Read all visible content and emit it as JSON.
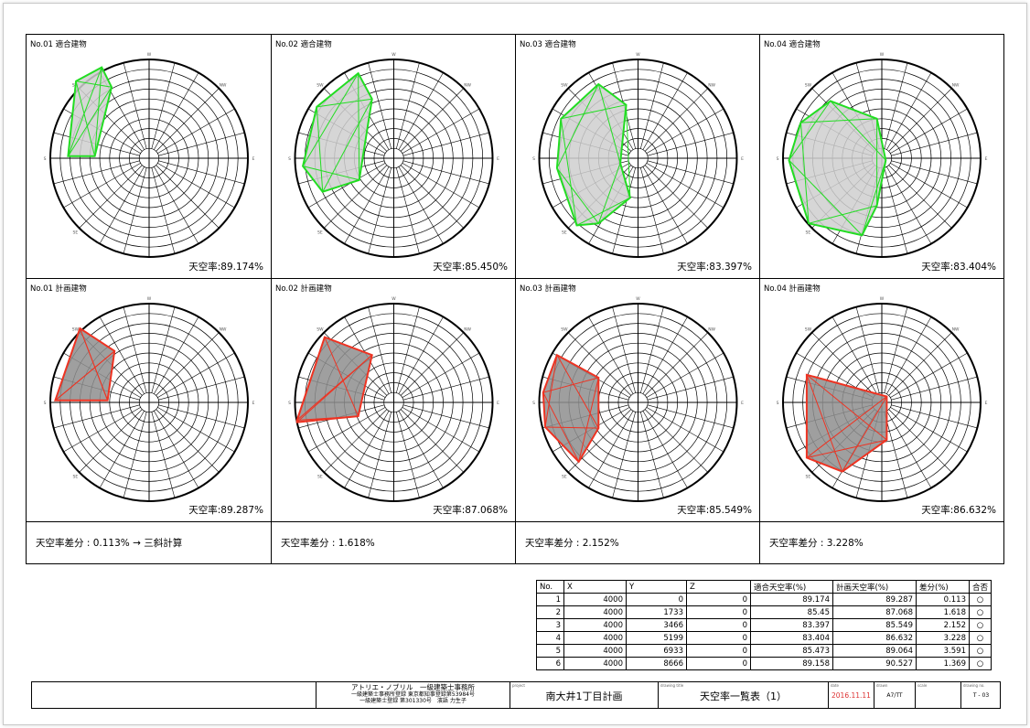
{
  "top_row": [
    {
      "label": "No.01 適合建物",
      "rate_text": "天空率:89.174%",
      "color": "#22dd22",
      "poly": [
        [
          -0.82,
          -0.02
        ],
        [
          -0.74,
          -0.78
        ],
        [
          -0.48,
          -0.92
        ],
        [
          -0.38,
          -0.72
        ],
        [
          -0.55,
          -0.02
        ]
      ]
    },
    {
      "label": "No.02 適合建物",
      "rate_text": "天空率:85.450%",
      "color": "#22dd22",
      "poly": [
        [
          -0.92,
          0.08
        ],
        [
          -0.78,
          -0.52
        ],
        [
          -0.36,
          -0.86
        ],
        [
          -0.22,
          -0.6
        ],
        [
          -0.35,
          0.22
        ],
        [
          -0.72,
          0.34
        ]
      ]
    },
    {
      "label": "No.03 適合建物",
      "rate_text": "天空率:83.397%",
      "color": "#22dd22",
      "poly": [
        [
          -0.78,
          -0.4
        ],
        [
          -0.4,
          -0.75
        ],
        [
          -0.12,
          -0.54
        ],
        [
          -0.18,
          0.05
        ],
        [
          -0.08,
          0.4
        ],
        [
          -0.4,
          0.66
        ],
        [
          -0.62,
          0.68
        ],
        [
          -0.82,
          0.1
        ]
      ]
    },
    {
      "label": "No.04 適合建物",
      "rate_text": "天空率:83.404%",
      "color": "#22dd22",
      "poly": [
        [
          -0.52,
          -0.58
        ],
        [
          -0.05,
          -0.4
        ],
        [
          0.04,
          0.02
        ],
        [
          -0.05,
          0.48
        ],
        [
          -0.2,
          0.78
        ],
        [
          -0.74,
          0.66
        ],
        [
          -0.94,
          0.02
        ],
        [
          -0.82,
          -0.36
        ]
      ]
    }
  ],
  "bottom_row": [
    {
      "label": "No.01 計画建物",
      "rate_text": "天空率:89.287%",
      "color": "#ee3322",
      "poly": [
        [
          -0.95,
          -0.02
        ],
        [
          -0.7,
          -0.75
        ],
        [
          -0.35,
          -0.52
        ],
        [
          -0.42,
          -0.02
        ]
      ]
    },
    {
      "label": "No.02 計画建物",
      "rate_text": "天空率:87.068%",
      "color": "#ee3322",
      "poly": [
        [
          -0.98,
          0.18
        ],
        [
          -0.7,
          -0.66
        ],
        [
          -0.22,
          -0.48
        ],
        [
          -0.36,
          0.14
        ],
        [
          -0.98,
          0.2
        ]
      ]
    },
    {
      "label": "No.03 計画建物",
      "rate_text": "天空率:85.549%",
      "color": "#ee3322",
      "poly": [
        [
          -0.82,
          -0.48
        ],
        [
          -0.4,
          -0.25
        ],
        [
          -0.4,
          0.26
        ],
        [
          -0.6,
          0.6
        ],
        [
          -0.94,
          0.25
        ],
        [
          -0.96,
          -0.1
        ]
      ]
    },
    {
      "label": "No.04 計画建物",
      "rate_text": "天空率:86.632%",
      "color": "#ee3322",
      "poly": [
        [
          -0.76,
          -0.28
        ],
        [
          0.05,
          -0.06
        ],
        [
          0.05,
          0.38
        ],
        [
          -0.4,
          0.7
        ],
        [
          -0.76,
          0.56
        ]
      ]
    }
  ],
  "diffs": [
    "天空率差分 : 0.113% → 三斜計算",
    "天空率差分 : 1.618%",
    "天空率差分 : 2.152%",
    "天空率差分 : 3.228%"
  ],
  "table": {
    "headers": [
      "No.",
      "X",
      "Y",
      "Z",
      "適合天空率(%)",
      "計画天空率(%)",
      "差分(%)",
      "合否"
    ],
    "rows": [
      [
        "1",
        "4000",
        "0",
        "0",
        "89.174",
        "89.287",
        "0.113",
        "○"
      ],
      [
        "2",
        "4000",
        "1733",
        "0",
        "85.45",
        "87.068",
        "1.618",
        "○"
      ],
      [
        "3",
        "4000",
        "3466",
        "0",
        "83.397",
        "85.549",
        "2.152",
        "○"
      ],
      [
        "4",
        "4000",
        "5199",
        "0",
        "83.404",
        "86.632",
        "3.228",
        "○"
      ],
      [
        "5",
        "4000",
        "6933",
        "0",
        "85.473",
        "89.064",
        "3.591",
        "○"
      ],
      [
        "6",
        "4000",
        "8666",
        "0",
        "89.158",
        "90.527",
        "1.369",
        "○"
      ]
    ]
  },
  "titleblock": {
    "office_lines": [
      "アトリエ・ノブリル　一級建築士事務所",
      "一級建築士事務所登録 東京都知事登録第53984号",
      "一級建築士登録 第301330号　濱語 力生子"
    ],
    "project_caption": "project",
    "project": "南大井1丁目計画",
    "drawing_caption": "drawing title",
    "drawing_title": "天空率一覧表（1）",
    "date_caption": "date",
    "date": "2016.11.11",
    "drawn_caption": "drawn",
    "drawn": "A7/TT",
    "scale_caption": "scale",
    "drawing_no_caption": "drawing no.",
    "drawing_no": "T - 03"
  },
  "compass_labels": [
    "W",
    "SW",
    "S",
    "SE",
    "E",
    "NW"
  ],
  "date_color": "#dd3333"
}
